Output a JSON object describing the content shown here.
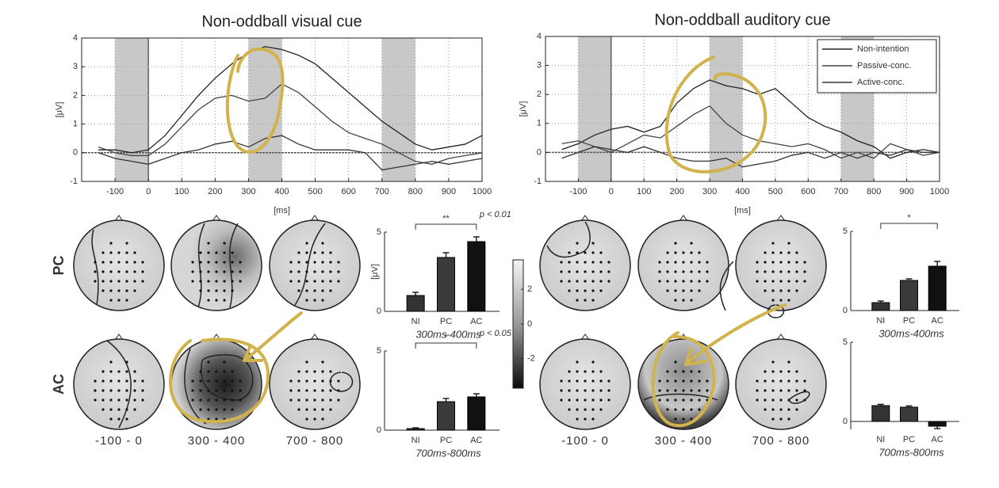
{
  "chart_data": [
    {
      "type": "line",
      "title": "Non-oddball visual cue",
      "xlabel": "[ms]",
      "ylabel": "[μV]",
      "xlim": [
        -200,
        1000
      ],
      "ylim": [
        -1,
        4
      ],
      "xticks": [
        -100,
        0,
        100,
        200,
        300,
        400,
        500,
        600,
        700,
        800,
        900,
        1000
      ],
      "yticks": [
        -1,
        0,
        1,
        2,
        3,
        4
      ],
      "grid": true,
      "shaded": [
        [
          -100,
          0
        ],
        [
          300,
          400
        ],
        [
          700,
          800
        ]
      ],
      "x": [
        -150,
        -100,
        -50,
        0,
        50,
        100,
        150,
        200,
        250,
        300,
        350,
        400,
        450,
        500,
        550,
        600,
        650,
        700,
        750,
        800,
        850,
        900,
        950,
        1000
      ],
      "series": [
        {
          "color": "#222222",
          "values": [
            0.1,
            0.1,
            0.0,
            0.1,
            0.6,
            1.3,
            2.0,
            2.6,
            3.1,
            3.5,
            3.7,
            3.6,
            3.4,
            3.1,
            2.6,
            2.1,
            1.6,
            1.1,
            0.7,
            0.3,
            0.1,
            0.2,
            0.3,
            0.6
          ]
        },
        {
          "color": "#444444",
          "values": [
            0.2,
            0.0,
            -0.1,
            -0.1,
            0.3,
            0.9,
            1.5,
            1.9,
            2.0,
            1.8,
            1.9,
            2.4,
            2.1,
            1.6,
            1.1,
            0.7,
            0.5,
            0.3,
            0.0,
            -0.3,
            -0.4,
            -0.2,
            -0.1,
            0.0
          ]
        },
        {
          "color": "#333333",
          "values": [
            0.0,
            -0.2,
            -0.3,
            -0.4,
            -0.2,
            0.0,
            0.1,
            0.3,
            0.4,
            0.2,
            0.5,
            0.6,
            0.3,
            0.1,
            0.1,
            0.1,
            0.0,
            -0.6,
            -0.5,
            -0.4,
            -0.3,
            -0.4,
            -0.3,
            -0.2
          ]
        }
      ]
    },
    {
      "type": "line",
      "title": "Non-oddball auditory cue",
      "xlabel": "[ms]",
      "ylabel": "[μV]",
      "xlim": [
        -200,
        1000
      ],
      "ylim": [
        -1,
        4
      ],
      "xticks": [
        -100,
        0,
        100,
        200,
        300,
        400,
        500,
        600,
        700,
        800,
        900,
        1000
      ],
      "yticks": [
        -1,
        0,
        1,
        2,
        3,
        4
      ],
      "grid": true,
      "legend": "upper right",
      "shaded": [
        [
          -100,
          0
        ],
        [
          300,
          400
        ],
        [
          700,
          800
        ]
      ],
      "x": [
        -150,
        -100,
        -50,
        0,
        50,
        100,
        150,
        200,
        250,
        300,
        350,
        400,
        450,
        500,
        550,
        600,
        650,
        700,
        750,
        800,
        850,
        900,
        950,
        1000
      ],
      "series": [
        {
          "name": "Non-intention",
          "color": "#222222",
          "values": [
            0.1,
            0.3,
            0.6,
            0.8,
            0.9,
            0.7,
            0.9,
            1.7,
            2.2,
            2.5,
            2.3,
            2.2,
            2.0,
            2.2,
            1.7,
            1.2,
            0.9,
            0.7,
            0.4,
            0.2,
            -0.2,
            0.0,
            0.1,
            0.0
          ]
        },
        {
          "name": "Passive-conc.",
          "color": "#444444",
          "values": [
            0.3,
            0.4,
            0.2,
            0.0,
            0.3,
            0.6,
            0.5,
            0.9,
            1.3,
            1.6,
            1.0,
            0.6,
            0.4,
            0.3,
            0.2,
            0.3,
            0.1,
            -0.2,
            0.0,
            -0.2,
            0.3,
            0.1,
            -0.1,
            0.0
          ]
        },
        {
          "name": "Active-conc.",
          "color": "#333333",
          "values": [
            -0.2,
            0.0,
            0.2,
            0.1,
            0.0,
            0.2,
            0.0,
            -0.2,
            -0.3,
            -0.3,
            -0.2,
            -0.5,
            -0.4,
            -0.3,
            -0.1,
            0.0,
            -0.2,
            0.0,
            -0.2,
            0.0,
            -0.1,
            0.1,
            0.0,
            0.0
          ]
        }
      ]
    },
    {
      "type": "bar",
      "ylabel": "[μV]",
      "xlabel": "300ms-400ms",
      "categories": [
        "NI",
        "PC",
        "AC"
      ],
      "values": [
        1.0,
        3.4,
        4.4
      ],
      "errors": [
        0.2,
        0.3,
        0.3
      ],
      "colors": [
        "#333333",
        "#3a3a3a",
        "#111111"
      ],
      "ylim": [
        0,
        5
      ],
      "yticks": [
        0,
        5
      ],
      "significance": "**",
      "p_label": "p < 0.01"
    },
    {
      "type": "bar",
      "xlabel": "700ms-800ms",
      "categories": [
        "NI",
        "PC",
        "AC"
      ],
      "values": [
        0.1,
        1.8,
        2.1
      ],
      "errors": [
        0.05,
        0.2,
        0.2
      ],
      "colors": [
        "#333333",
        "#3a3a3a",
        "#111111"
      ],
      "ylim": [
        0,
        5
      ],
      "yticks": [
        0,
        5
      ],
      "significance": "*",
      "p_label": "p < 0.05"
    },
    {
      "type": "bar",
      "xlabel": "300ms-400ms",
      "categories": [
        "NI",
        "PC",
        "AC"
      ],
      "values": [
        0.5,
        1.9,
        2.8
      ],
      "errors": [
        0.1,
        0.1,
        0.3
      ],
      "colors": [
        "#333333",
        "#3a3a3a",
        "#111111"
      ],
      "ylim": [
        0,
        5
      ],
      "yticks": [
        0,
        5
      ],
      "significance": "*"
    },
    {
      "type": "bar",
      "xlabel": "700ms-800ms",
      "categories": [
        "NI",
        "PC",
        "AC"
      ],
      "values": [
        1.0,
        0.9,
        -0.3
      ],
      "errors": [
        0.08,
        0.08,
        0.15
      ],
      "colors": [
        "#333333",
        "#3a3a3a",
        "#111111"
      ],
      "ylim": [
        -0.5,
        5
      ],
      "yticks": [
        0,
        5
      ]
    },
    {
      "type": "colorbar",
      "ylim": [
        -3.7,
        3.7
      ],
      "yticks": [
        -2,
        0,
        2
      ]
    }
  ],
  "topomaps": {
    "row_labels": [
      "PC",
      "AC"
    ],
    "column_labels": [
      "-100 - 0",
      "300 - 400",
      "700 - 800"
    ]
  }
}
